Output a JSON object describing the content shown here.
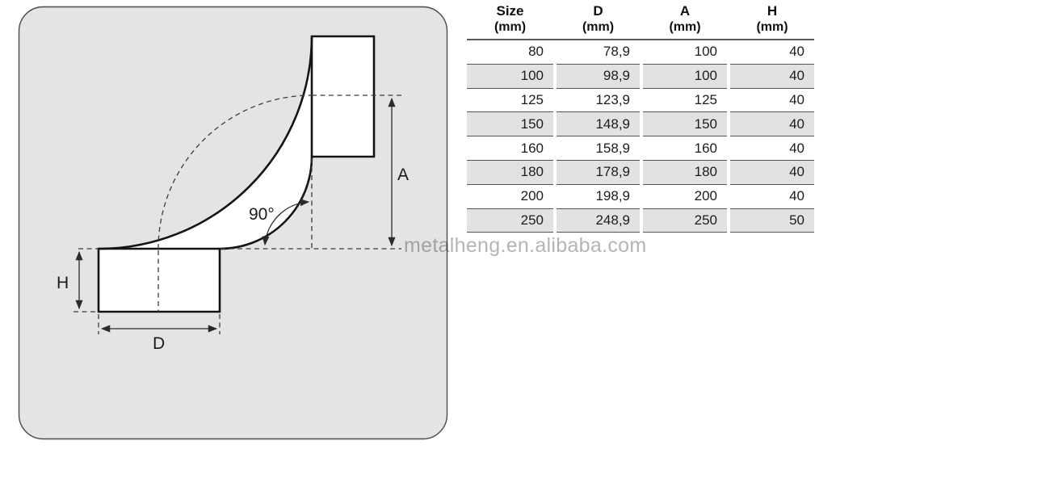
{
  "diagram": {
    "name": "90-degree duct elbow technical drawing",
    "labels": {
      "angle": "90°",
      "a": "A",
      "h": "H",
      "d": "D"
    },
    "panel_fill": "#e4e4e4",
    "panel_border": "#4a4a4a",
    "outline_color": "#141414"
  },
  "table": {
    "columns": [
      {
        "name": "Size",
        "unit": "(mm)"
      },
      {
        "name": "D",
        "unit": "(mm)"
      },
      {
        "name": "A",
        "unit": "(mm)"
      },
      {
        "name": "H",
        "unit": "(mm)"
      }
    ],
    "rows": [
      [
        "80",
        "78,9",
        "100",
        "40"
      ],
      [
        "100",
        "98,9",
        "100",
        "40"
      ],
      [
        "125",
        "123,9",
        "125",
        "40"
      ],
      [
        "150",
        "148,9",
        "150",
        "40"
      ],
      [
        "160",
        "158,9",
        "160",
        "40"
      ],
      [
        "180",
        "178,9",
        "180",
        "40"
      ],
      [
        "200",
        "198,9",
        "200",
        "40"
      ],
      [
        "250",
        "248,9",
        "250",
        "50"
      ]
    ],
    "stripe_color": "#e2e2e2"
  },
  "watermark": {
    "text": "metalheng.en.alibaba.com",
    "color": "#b5b5b5"
  }
}
